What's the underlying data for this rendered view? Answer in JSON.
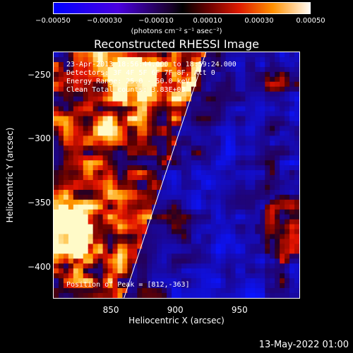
{
  "chart_data": {
    "type": "heatmap",
    "title": "Reconstructed RHESSI Image",
    "xlabel": "Heliocentric X (arcsec)",
    "ylabel": "Heliocentric Y (arcsec)",
    "xlim": [
      805,
      997
    ],
    "ylim": [
      -425,
      -232
    ],
    "x_ticks": [
      "850",
      "900",
      "950"
    ],
    "x_tick_values": [
      850,
      900,
      950
    ],
    "y_ticks": [
      "-250",
      "-300",
      "-350",
      "-400"
    ],
    "y_tick_values": [
      -250,
      -300,
      -350,
      -400
    ],
    "colorbar": {
      "ticks": [
        "-0.00050",
        "-0.00030",
        "-0.00010",
        "0.00010",
        "0.00030",
        "0.00050"
      ],
      "tick_values": [
        -0.0005,
        -0.0003,
        -0.0001,
        0.0001,
        0.0003,
        0.0005
      ],
      "range": [
        -0.0005,
        0.0005
      ],
      "label": "(photons cm⁻² s⁻¹ asec⁻²)"
    },
    "annotations": [
      "23-Apr-2013 18:56:44.000 to 18:59:24.000",
      "Detectors: 3F 4F 5F 6F 7F 8F, Att 0",
      "Energy Range: 25.0 - 50.0 keV",
      "Clean    Total counts: 3.83E+03"
    ],
    "peak_label": "Position of Peak = [812,-363]",
    "limb_line": {
      "x": [
        860,
        924
      ],
      "y": [
        -425,
        -232
      ]
    },
    "grid": false
  },
  "footer_date": "13-May-2022 01:00",
  "colors": {
    "background": "#000000",
    "text": "#ffffff"
  }
}
